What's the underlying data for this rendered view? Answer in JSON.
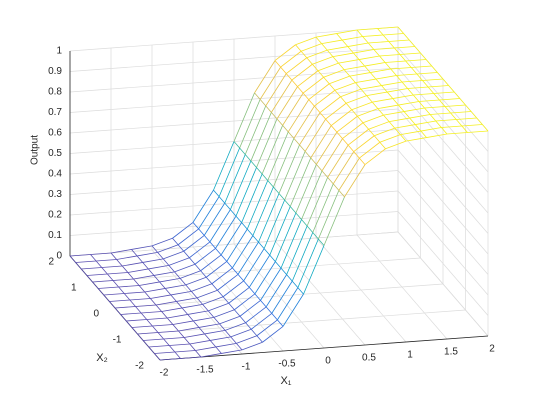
{
  "chart_data": {
    "type": "surface",
    "xlabel": "X₁",
    "ylabel": "X₂",
    "zlabel": "Output",
    "x": [
      -2,
      -1.75,
      -1.5,
      -1.25,
      -1,
      -0.75,
      -0.5,
      -0.25,
      0,
      0.25,
      0.5,
      0.75,
      1,
      1.25,
      1.5,
      1.75,
      2
    ],
    "y": [
      -2,
      -1.75,
      -1.5,
      -1.25,
      -1,
      -0.75,
      -0.5,
      -0.25,
      0,
      0.25,
      0.5,
      0.75,
      1,
      1.25,
      1.5,
      1.75,
      2
    ],
    "z": [
      [
        0,
        0,
        0,
        0.01,
        0.02,
        0.05,
        0.12,
        0.27,
        0.5,
        0.73,
        0.88,
        0.95,
        0.98,
        0.99,
        1,
        1,
        1
      ],
      [
        0,
        0,
        0,
        0.01,
        0.02,
        0.05,
        0.12,
        0.27,
        0.5,
        0.73,
        0.88,
        0.95,
        0.98,
        0.99,
        1,
        1,
        1
      ],
      [
        0,
        0,
        0,
        0.01,
        0.02,
        0.05,
        0.12,
        0.27,
        0.5,
        0.73,
        0.88,
        0.95,
        0.98,
        0.99,
        1,
        1,
        1
      ],
      [
        0,
        0,
        0,
        0.01,
        0.02,
        0.05,
        0.12,
        0.27,
        0.5,
        0.73,
        0.88,
        0.95,
        0.98,
        0.99,
        1,
        1,
        1
      ],
      [
        0,
        0,
        0,
        0.01,
        0.02,
        0.05,
        0.12,
        0.27,
        0.5,
        0.73,
        0.88,
        0.95,
        0.98,
        0.99,
        1,
        1,
        1
      ],
      [
        0,
        0,
        0,
        0.01,
        0.02,
        0.05,
        0.12,
        0.27,
        0.5,
        0.73,
        0.88,
        0.95,
        0.98,
        0.99,
        1,
        1,
        1
      ],
      [
        0,
        0,
        0,
        0.01,
        0.02,
        0.05,
        0.12,
        0.27,
        0.5,
        0.73,
        0.88,
        0.95,
        0.98,
        0.99,
        1,
        1,
        1
      ],
      [
        0,
        0,
        0,
        0.01,
        0.02,
        0.05,
        0.12,
        0.27,
        0.5,
        0.73,
        0.88,
        0.95,
        0.98,
        0.99,
        1,
        1,
        1
      ],
      [
        0,
        0,
        0,
        0.01,
        0.02,
        0.05,
        0.12,
        0.27,
        0.5,
        0.73,
        0.88,
        0.95,
        0.98,
        0.99,
        1,
        1,
        1
      ],
      [
        0,
        0,
        0,
        0.01,
        0.02,
        0.05,
        0.12,
        0.27,
        0.5,
        0.73,
        0.88,
        0.95,
        0.98,
        0.99,
        1,
        1,
        1
      ],
      [
        0,
        0,
        0,
        0.01,
        0.02,
        0.05,
        0.12,
        0.27,
        0.5,
        0.73,
        0.88,
        0.95,
        0.98,
        0.99,
        1,
        1,
        1
      ],
      [
        0,
        0,
        0,
        0.01,
        0.02,
        0.05,
        0.12,
        0.27,
        0.5,
        0.73,
        0.88,
        0.95,
        0.98,
        0.99,
        1,
        1,
        1
      ],
      [
        0,
        0,
        0,
        0.01,
        0.02,
        0.05,
        0.12,
        0.27,
        0.5,
        0.73,
        0.88,
        0.95,
        0.98,
        0.99,
        1,
        1,
        1
      ],
      [
        0,
        0,
        0,
        0.01,
        0.02,
        0.05,
        0.12,
        0.27,
        0.5,
        0.73,
        0.88,
        0.95,
        0.98,
        0.99,
        1,
        1,
        1
      ],
      [
        0,
        0,
        0,
        0.01,
        0.02,
        0.05,
        0.12,
        0.27,
        0.5,
        0.73,
        0.88,
        0.95,
        0.98,
        0.99,
        1,
        1,
        1
      ],
      [
        0,
        0,
        0,
        0.01,
        0.02,
        0.05,
        0.12,
        0.27,
        0.5,
        0.73,
        0.88,
        0.95,
        0.98,
        0.99,
        1,
        1,
        1
      ],
      [
        0,
        0,
        0,
        0.01,
        0.02,
        0.05,
        0.12,
        0.27,
        0.5,
        0.73,
        0.88,
        0.95,
        0.98,
        0.99,
        1,
        1,
        1
      ]
    ],
    "xlim": [
      -2,
      2
    ],
    "ylim": [
      -2,
      2
    ],
    "zlim": [
      0,
      1
    ],
    "xticks": [
      -2,
      -1.5,
      -1,
      -0.5,
      0,
      0.5,
      1,
      1.5,
      2
    ],
    "yticks": [
      -2,
      -1,
      0,
      1,
      2
    ],
    "zticks": [
      0,
      0.1,
      0.2,
      0.3,
      0.4,
      0.5,
      0.6,
      0.7,
      0.8,
      0.9,
      1
    ],
    "grid": true,
    "colormap": [
      "#5a4fb0",
      "#2c6fe0",
      "#1a8fd6",
      "#0aa8c4",
      "#3bb8a0",
      "#8cc07a",
      "#d3bd5b",
      "#fdc936",
      "#f4f020"
    ]
  }
}
